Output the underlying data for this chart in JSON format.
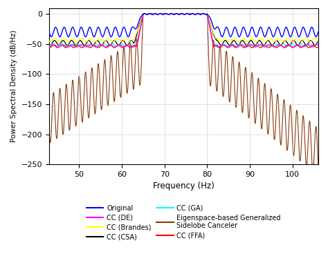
{
  "xlabel": "Frequency (Hz)",
  "ylabel": "Power Spectral Density (dB/Hz)",
  "xlim": [
    43,
    106
  ],
  "ylim": [
    -250,
    10
  ],
  "yticks": [
    0,
    -50,
    -100,
    -150,
    -200,
    -250
  ],
  "xticks": [
    50,
    60,
    70,
    80,
    90,
    100
  ],
  "freq_start": 43,
  "freq_end": 106,
  "npoints": 5000,
  "ofdm_start": 65.0,
  "ofdm_end": 80.0,
  "colors": {
    "original": "#0000FF",
    "brandes": "#FFFF00",
    "ga": "#00FFFF",
    "ffa": "#FF0000",
    "de": "#FF00FF",
    "csa": "#000000",
    "eigen": "#8B3A0A"
  },
  "background_color": "#ffffff",
  "grid_color": "#c8c8c8"
}
